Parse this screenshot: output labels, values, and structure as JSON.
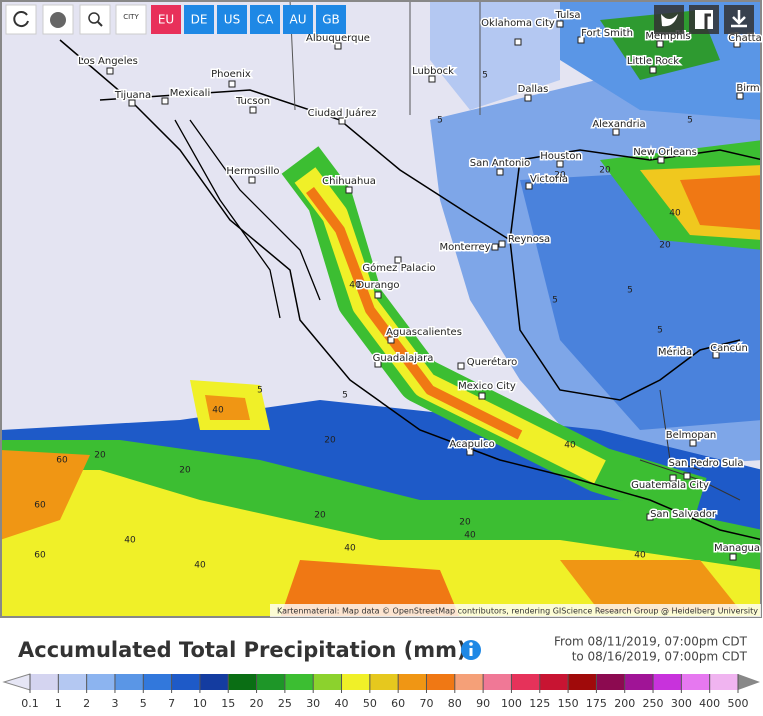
{
  "toolbar": {
    "city_icon": "CITY",
    "regions": [
      "EU",
      "DE",
      "US",
      "CA",
      "AU",
      "GB"
    ]
  },
  "map": {
    "cities": [
      "Los Angeles",
      "Phoenix",
      "Tijuana",
      "Mexicali",
      "Tucson",
      "Albuquerque",
      "Oklahoma City",
      "Tulsa",
      "Fort Smith",
      "Memphis",
      "Chatta",
      "Lubbock",
      "Little Rock",
      "Birm",
      "Dallas",
      "Ciudad Juárez",
      "Alexandria",
      "San Antonio",
      "Houston",
      "New Orleans",
      "Hermosillo",
      "Chihuahua",
      "Victoria",
      "Monterrey",
      "Reynosa",
      "Gómez Palacio",
      "Durango",
      "Aguascalientes",
      "Mérida",
      "Cancún",
      "Guadalajara",
      "Querétaro",
      "Mexico City",
      "Acapulco",
      "Belmopan",
      "San Pedro Sula",
      "Guatemala City",
      "San Salvador",
      "Managua"
    ],
    "contour_labels": [
      "5",
      "5",
      "5",
      "20",
      "40",
      "20",
      "40",
      "5",
      "20",
      "5",
      "40",
      "20",
      "60",
      "60",
      "40",
      "20",
      "40",
      "40",
      "20",
      "40",
      "60",
      "5",
      "20",
      "5",
      "40",
      "20",
      "40",
      "5"
    ],
    "attribution": "Kartenmaterial: Map data © OpenStreetMap contributors, rendering GIScience Research Group @ Heidelberg University"
  },
  "legend": {
    "title": "Accumulated Total Precipitation (mm)",
    "from": "From 08/11/2019, 07:00pm CDT",
    "to": "to 08/16/2019, 07:00pm CDT",
    "labels": [
      0.1,
      1,
      2,
      3,
      5,
      7,
      10,
      15,
      20,
      25,
      30,
      40,
      50,
      60,
      70,
      80,
      90,
      100,
      125,
      150,
      175,
      200,
      250,
      300,
      400,
      500
    ],
    "colors": [
      "#d4d4f0",
      "#b4c8f2",
      "#8cb4f0",
      "#5a96e6",
      "#3278dc",
      "#1e5ac8",
      "#143ca0",
      "#0a6e14",
      "#1e9628",
      "#3cbe32",
      "#8cd22d",
      "#f0f028",
      "#e6c81e",
      "#f09614",
      "#f07814",
      "#f5a078",
      "#f07896",
      "#e6325a",
      "#c81432",
      "#a00a0a",
      "#8c0a50",
      "#a01496",
      "#c832dc",
      "#e678f0",
      "#f0b4f0"
    ]
  }
}
